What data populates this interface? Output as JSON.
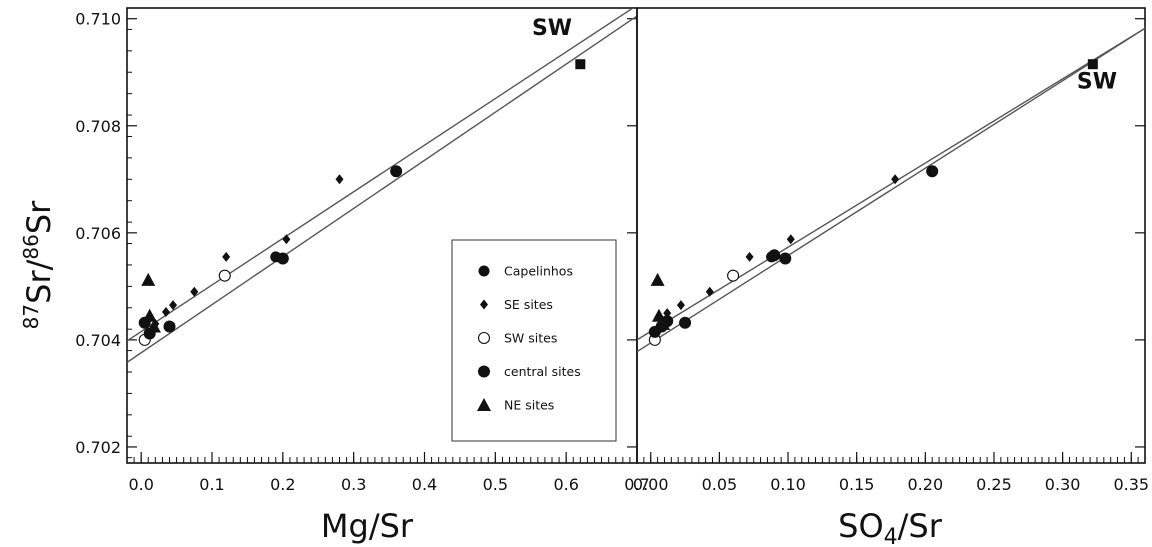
{
  "chart_data": [
    {
      "type": "scatter",
      "panel": "left",
      "xlabel": "Mg/Sr",
      "ylabel": "87Sr/86Sr",
      "ylabel_parts": {
        "sup1": "87",
        "base1": "Sr/",
        "sup2": "86",
        "base2": "Sr"
      },
      "xlim": [
        -0.02,
        0.7
      ],
      "ylim": [
        0.7017,
        0.7102
      ],
      "x_ticks": [
        "0.0",
        "0.1",
        "0.2",
        "0.3",
        "0.4",
        "0.5",
        "0.6",
        "0.7"
      ],
      "x_tick_values": [
        0.0,
        0.1,
        0.2,
        0.3,
        0.4,
        0.5,
        0.6,
        0.7
      ],
      "y_ticks": [
        "0.702",
        "0.704",
        "0.706",
        "0.708",
        "0.710"
      ],
      "y_tick_values": [
        0.702,
        0.704,
        0.706,
        0.708,
        0.71
      ],
      "grid": false,
      "legend_position": "bottom-right",
      "annotations": [
        {
          "text": "SW",
          "x": 0.58,
          "y": 0.7097
        }
      ],
      "lines": [
        {
          "x": [
            -0.02,
            0.7
          ],
          "y": [
            0.70398,
            0.71025
          ]
        },
        {
          "x": [
            -0.02,
            0.7
          ],
          "y": [
            0.70358,
            0.71005
          ]
        }
      ],
      "series": [
        {
          "name": "Capelinhos",
          "marker": "filled-circle-small",
          "points": [
            [
              0.19,
              0.70555
            ]
          ]
        },
        {
          "name": "SE sites",
          "marker": "filled-diamond",
          "points": [
            [
              0.02,
              0.7043
            ],
            [
              0.035,
              0.70452
            ],
            [
              0.045,
              0.70465
            ],
            [
              0.075,
              0.7049
            ],
            [
              0.12,
              0.70555
            ],
            [
              0.205,
              0.70588
            ],
            [
              0.28,
              0.707
            ]
          ]
        },
        {
          "name": "SW sites",
          "marker": "open-circle",
          "points": [
            [
              0.005,
              0.704
            ],
            [
              0.118,
              0.7052
            ]
          ]
        },
        {
          "name": "central sites",
          "marker": "filled-circle",
          "points": [
            [
              0.005,
              0.70432
            ],
            [
              0.012,
              0.70412
            ],
            [
              0.04,
              0.70425
            ],
            [
              0.2,
              0.70552
            ],
            [
              0.36,
              0.70715
            ]
          ]
        },
        {
          "name": "NE sites",
          "marker": "filled-triangle",
          "points": [
            [
              0.01,
              0.70512
            ],
            [
              0.012,
              0.70445
            ],
            [
              0.018,
              0.70425
            ]
          ]
        },
        {
          "name": "",
          "marker": "filled-square",
          "points": [
            [
              0.62,
              0.70915
            ]
          ]
        }
      ]
    },
    {
      "type": "scatter",
      "panel": "right",
      "xlabel": "SO4/Sr",
      "xlabel_parts": {
        "base": "SO",
        "sub": "4",
        "rest": "/Sr"
      },
      "ylabel": "",
      "xlim": [
        -0.01,
        0.36
      ],
      "ylim": [
        0.7017,
        0.7102
      ],
      "x_ticks": [
        "0.00",
        "0.05",
        "0.10",
        "0.15",
        "0.20",
        "0.25",
        "0.30",
        "0.35"
      ],
      "x_tick_values": [
        0.0,
        0.05,
        0.1,
        0.15,
        0.2,
        0.25,
        0.3,
        0.35
      ],
      "grid": false,
      "annotations": [
        {
          "text": "SW",
          "x": 0.325,
          "y": 0.7087
        }
      ],
      "lines": [
        {
          "x": [
            -0.01,
            0.36
          ],
          "y": [
            0.704,
            0.70982
          ]
        },
        {
          "x": [
            -0.01,
            0.36
          ],
          "y": [
            0.70378,
            0.70982
          ]
        }
      ],
      "series": [
        {
          "name": "Capelinhos",
          "marker": "filled-circle-small",
          "points": [
            [
              0.088,
              0.70555
            ]
          ]
        },
        {
          "name": "SE sites",
          "marker": "filled-diamond",
          "points": [
            [
              0.012,
              0.7045
            ],
            [
              0.022,
              0.70465
            ],
            [
              0.043,
              0.7049
            ],
            [
              0.072,
              0.70555
            ],
            [
              0.102,
              0.70588
            ],
            [
              0.178,
              0.707
            ]
          ]
        },
        {
          "name": "SW sites",
          "marker": "open-circle",
          "points": [
            [
              0.003,
              0.704
            ],
            [
              0.06,
              0.7052
            ]
          ]
        },
        {
          "name": "central sites",
          "marker": "filled-circle",
          "points": [
            [
              0.003,
              0.70415
            ],
            [
              0.008,
              0.70425
            ],
            [
              0.012,
              0.70435
            ],
            [
              0.025,
              0.70432
            ],
            [
              0.09,
              0.70558
            ],
            [
              0.098,
              0.70552
            ],
            [
              0.205,
              0.70715
            ]
          ]
        },
        {
          "name": "NE sites",
          "marker": "filled-triangle",
          "points": [
            [
              0.005,
              0.70512
            ],
            [
              0.006,
              0.70445
            ],
            [
              0.009,
              0.7043
            ]
          ]
        },
        {
          "name": "",
          "marker": "filled-square",
          "points": [
            [
              0.322,
              0.70915
            ]
          ]
        }
      ]
    }
  ],
  "legend": {
    "items": [
      {
        "label": "Capelinhos",
        "marker": "filled-circle-small"
      },
      {
        "label": "SE sites",
        "marker": "filled-diamond"
      },
      {
        "label": "SW sites",
        "marker": "open-circle"
      },
      {
        "label": "central sites",
        "marker": "filled-circle"
      },
      {
        "label": "NE sites",
        "marker": "filled-triangle"
      }
    ]
  }
}
